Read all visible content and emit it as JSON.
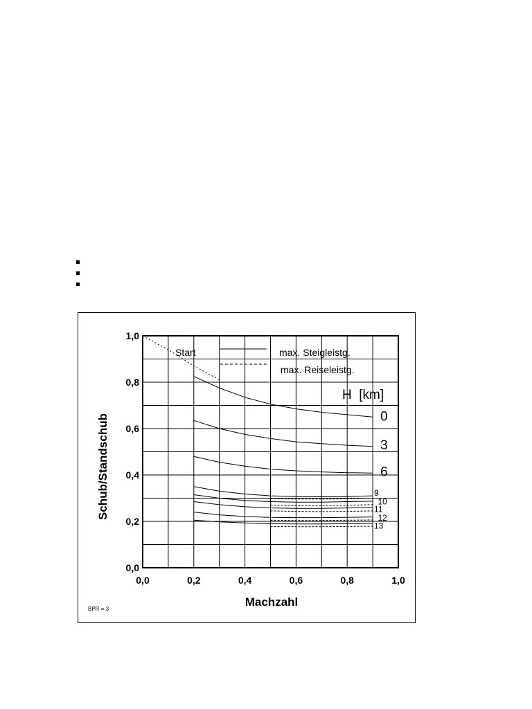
{
  "bullets": [
    "",
    "",
    ""
  ],
  "chart_data": {
    "type": "line",
    "xlabel": "Machzahl",
    "ylabel": "Schub/Standschub",
    "xlim": [
      0,
      1
    ],
    "ylim": [
      0,
      1
    ],
    "xticks": [
      0,
      0.2,
      0.4,
      0.6,
      0.8,
      1.0
    ],
    "yticks": [
      0,
      0.2,
      0.4,
      0.6,
      0.8,
      1.0
    ],
    "xtick_labels": [
      "0,0",
      "0,2",
      "0,4",
      "0,6",
      "0,8",
      "1,0"
    ],
    "ytick_labels": [
      "0,0",
      "0,2",
      "0,4",
      "0,6",
      "0,8",
      "1,0"
    ],
    "grid": true,
    "legend": {
      "start": "Start",
      "solid": "max. Steigleistg.",
      "dashed": "max. Reiseleistg."
    },
    "series_label_header": "H  [km]",
    "footnote": "BPR = 3",
    "series": [
      {
        "name": "Start",
        "style": "dotted",
        "x": [
          0,
          0.05,
          0.1,
          0.15,
          0.2,
          0.25,
          0.3
        ],
        "y": [
          1.0,
          0.97,
          0.94,
          0.905,
          0.87,
          0.84,
          0.81
        ]
      },
      {
        "name": "0",
        "style": "solid",
        "x": [
          0.2,
          0.3,
          0.4,
          0.5,
          0.6,
          0.7,
          0.8,
          0.9
        ],
        "y": [
          0.825,
          0.775,
          0.735,
          0.705,
          0.685,
          0.67,
          0.66,
          0.65
        ]
      },
      {
        "name": "3",
        "style": "solid",
        "x": [
          0.2,
          0.3,
          0.4,
          0.5,
          0.6,
          0.7,
          0.8,
          0.9
        ],
        "y": [
          0.635,
          0.6,
          0.575,
          0.557,
          0.543,
          0.535,
          0.528,
          0.523
        ]
      },
      {
        "name": "6",
        "style": "solid",
        "x": [
          0.2,
          0.3,
          0.4,
          0.5,
          0.6,
          0.7,
          0.8,
          0.9
        ],
        "y": [
          0.48,
          0.455,
          0.438,
          0.425,
          0.418,
          0.413,
          0.41,
          0.408
        ]
      },
      {
        "name": "9",
        "style": "solid",
        "x": [
          0.2,
          0.3,
          0.4,
          0.5,
          0.6,
          0.7,
          0.8,
          0.9
        ],
        "y": [
          0.35,
          0.33,
          0.318,
          0.31,
          0.307,
          0.306,
          0.307,
          0.31
        ]
      },
      {
        "name": "9",
        "style": "dashed",
        "x": [
          0.5,
          0.6,
          0.7,
          0.8,
          0.9
        ],
        "y": [
          0.298,
          0.296,
          0.296,
          0.297,
          0.3
        ]
      },
      {
        "name": "10",
        "style": "solid",
        "x": [
          0.2,
          0.3,
          0.4,
          0.5,
          0.6,
          0.7,
          0.8,
          0.9
        ],
        "y": [
          0.315,
          0.3,
          0.29,
          0.285,
          0.283,
          0.283,
          0.285,
          0.287
        ]
      },
      {
        "name": "10",
        "style": "dashed",
        "x": [
          0.5,
          0.6,
          0.7,
          0.8,
          0.9
        ],
        "y": [
          0.27,
          0.268,
          0.268,
          0.27,
          0.272
        ]
      },
      {
        "name": "11",
        "style": "solid",
        "x": [
          0.2,
          0.3,
          0.4,
          0.5,
          0.6,
          0.7,
          0.8,
          0.9
        ],
        "y": [
          0.285,
          0.272,
          0.263,
          0.258,
          0.256,
          0.256,
          0.258,
          0.26
        ]
      },
      {
        "name": "11",
        "style": "dashed",
        "x": [
          0.5,
          0.6,
          0.7,
          0.8,
          0.9
        ],
        "y": [
          0.245,
          0.243,
          0.242,
          0.243,
          0.245
        ]
      },
      {
        "name": "12",
        "style": "solid",
        "x": [
          0.2,
          0.3,
          0.4,
          0.5,
          0.6,
          0.7,
          0.8,
          0.9
        ],
        "y": [
          0.24,
          0.228,
          0.221,
          0.217,
          0.216,
          0.216,
          0.217,
          0.219
        ]
      },
      {
        "name": "12",
        "style": "dashed",
        "x": [
          0.5,
          0.6,
          0.7,
          0.8,
          0.9
        ],
        "y": [
          0.205,
          0.204,
          0.204,
          0.205,
          0.206
        ]
      },
      {
        "name": "13",
        "style": "solid",
        "x": [
          0.2,
          0.3,
          0.4,
          0.5,
          0.6,
          0.7,
          0.8,
          0.9
        ],
        "y": [
          0.205,
          0.198,
          0.193,
          0.19,
          0.189,
          0.189,
          0.19,
          0.191
        ]
      },
      {
        "name": "13",
        "style": "dashed",
        "x": [
          0.5,
          0.6,
          0.7,
          0.8,
          0.9
        ],
        "y": [
          0.178,
          0.177,
          0.177,
          0.178,
          0.179
        ]
      }
    ],
    "curve_labels": [
      {
        "text": "0",
        "size": "big",
        "x": 0.93,
        "y": 0.635
      },
      {
        "text": "3",
        "size": "big",
        "x": 0.93,
        "y": 0.51
      },
      {
        "text": "6",
        "size": "big",
        "x": 0.93,
        "y": 0.395
      },
      {
        "text": "9",
        "size": "small",
        "x": 0.905,
        "y": 0.31
      },
      {
        "text": "10",
        "size": "small",
        "x": 0.92,
        "y": 0.273
      },
      {
        "text": "11",
        "size": "small",
        "x": 0.905,
        "y": 0.24
      },
      {
        "text": "12",
        "size": "small",
        "x": 0.92,
        "y": 0.203
      },
      {
        "text": "13",
        "size": "small",
        "x": 0.905,
        "y": 0.168
      }
    ]
  }
}
